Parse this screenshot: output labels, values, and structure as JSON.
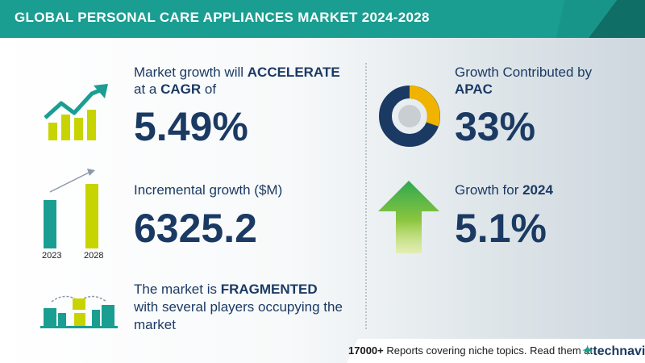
{
  "title": "GLOBAL PERSONAL CARE APPLIANCES MARKET 2024-2028",
  "cagr": {
    "line1_prefix": "Market growth will ",
    "line1_bold": "ACCELERATE",
    "line2_prefix": "at a ",
    "line2_bold": "CAGR",
    "line2_suffix": "  of",
    "value": "5.49%"
  },
  "incremental": {
    "label": "Incremental growth ($M)",
    "value": "6325.2",
    "year_start": "2023",
    "year_end": "2028"
  },
  "market": {
    "line1_prefix": "The market is ",
    "line1_bold": "FRAGMENTED",
    "line2": "with several players occupying the",
    "line3": "market"
  },
  "region": {
    "label": "Growth Contributed by",
    "name": "APAC",
    "value": "33%"
  },
  "growth_year": {
    "label_prefix": "Growth for  ",
    "year": "2024",
    "value": "5.1%"
  },
  "footer": {
    "count": "17000+",
    "text": " Reports covering niche topics. Read them at",
    "brand": "technavio"
  },
  "colors": {
    "teal": "#1a9e91",
    "navy": "#1b3a63",
    "lime": "#c8d400",
    "gold": "#f0b400",
    "green": "#2fa84f"
  },
  "icons": [
    "growth-chart-icon",
    "bar-compare-icon",
    "buildings-icon",
    "donut-chart-icon",
    "up-arrow-icon"
  ]
}
